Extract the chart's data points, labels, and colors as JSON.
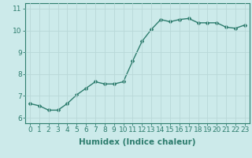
{
  "x": [
    0,
    1,
    2,
    3,
    4,
    5,
    6,
    7,
    8,
    9,
    10,
    11,
    12,
    13,
    14,
    15,
    16,
    17,
    18,
    19,
    20,
    21,
    22,
    23
  ],
  "y": [
    6.65,
    6.55,
    6.35,
    6.35,
    6.65,
    7.05,
    7.35,
    7.65,
    7.55,
    7.55,
    7.65,
    8.6,
    9.5,
    10.05,
    10.5,
    10.4,
    10.5,
    10.55,
    10.35,
    10.35,
    10.35,
    10.15,
    10.1,
    10.25
  ],
  "line_color": "#2e7d6e",
  "bg_color": "#cceaea",
  "grid_color": "#b8d8d8",
  "xlabel": "Humidex (Indice chaleur)",
  "xlim": [
    -0.5,
    23.5
  ],
  "ylim": [
    5.75,
    11.25
  ],
  "yticks": [
    6,
    7,
    8,
    9,
    10,
    11
  ],
  "xtick_labels": [
    "0",
    "1",
    "2",
    "3",
    "4",
    "5",
    "6",
    "7",
    "8",
    "9",
    "10",
    "11",
    "12",
    "13",
    "14",
    "15",
    "16",
    "17",
    "18",
    "19",
    "20",
    "21",
    "22",
    "23"
  ],
  "marker": "D",
  "markersize": 2.0,
  "linewidth": 1.0,
  "xlabel_fontsize": 7.5,
  "tick_fontsize": 6.5
}
